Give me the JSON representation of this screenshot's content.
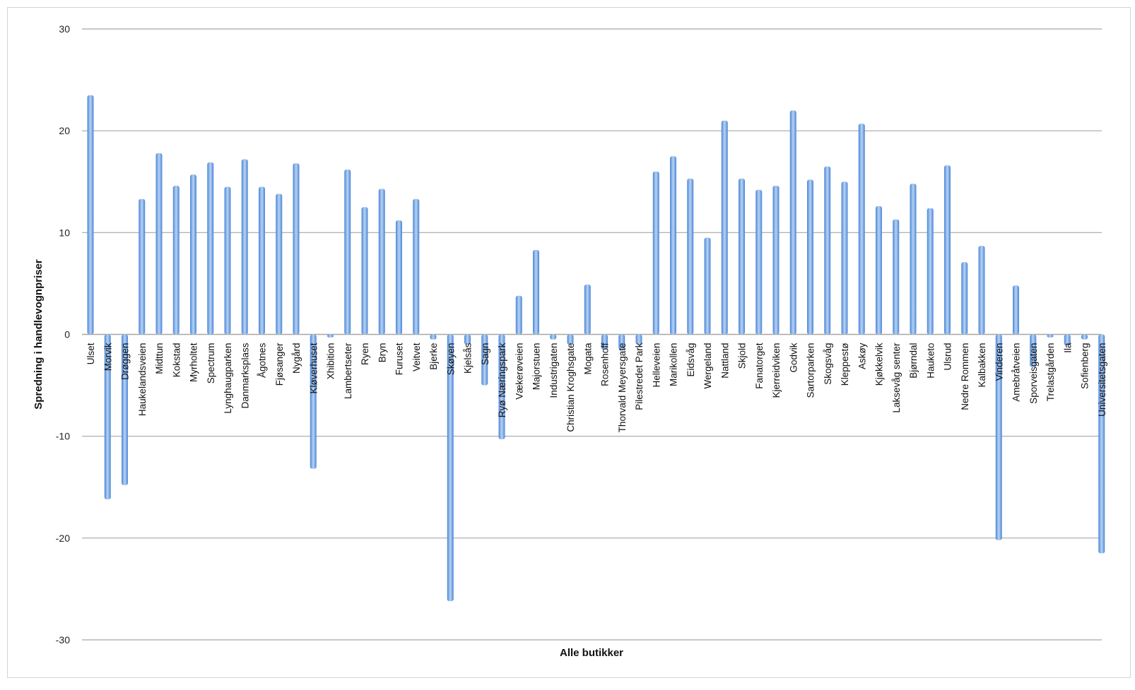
{
  "chart_data": {
    "type": "bar",
    "title": "",
    "xlabel": "Alle butikker",
    "ylabel": "Spredning i handlevognpriser",
    "ylim": [
      -30,
      30
    ],
    "yticks": [
      30,
      20,
      10,
      0,
      -10,
      -20,
      -30
    ],
    "grid": true,
    "legend": "none",
    "bar_color": "#4a86d8",
    "bar_color_light": "#b9d3f3",
    "gridline_color": "#a6a6a6",
    "categories": [
      "Ulset",
      "Morvik",
      "Drøggen",
      "Haukelandsveien",
      "Midttun",
      "Kokstad",
      "Myrholtet",
      "Spectrum",
      "Lynghaugparken",
      "Danmarksplass",
      "Ågotnes",
      "Fjøsanger",
      "Nygård",
      "Kløverhuset",
      "Xhibition",
      "Lambertseter",
      "Ryen",
      "Bryn",
      "Furuset",
      "Veitvet",
      "Bjerke",
      "Skøyen",
      "Kjelsås",
      "Sagn",
      "Ryø Næringspark",
      "Vækerøveien",
      "Majorstuen",
      "Industrigaten",
      "Christian Kroghsgate",
      "Mogata",
      "Rosenhoff",
      "Thorvald Meyersgate",
      "Pilestredet Park",
      "Helleveien",
      "Marikollen",
      "Eidsvåg",
      "Wergeland",
      "Nattland",
      "Skjold",
      "Fanatorget",
      "Kjerreidviken",
      "Godvik",
      "Sartorparken",
      "Skogsvåg",
      "Kleppestø",
      "Askøy",
      "Kjøkkelvik",
      "Laksevåg senter",
      "Bjørndal",
      "Hauketo",
      "Ulsrud",
      "Nedre Rommen",
      "Kalbakken",
      "Vinderen",
      "Amebråtveien",
      "Sporveisgaten",
      "Trelastgården",
      "Ila",
      "Sofienberg",
      "Universitetsgaten"
    ],
    "values": [
      23.5,
      -16.2,
      -14.8,
      13.3,
      17.8,
      14.6,
      15.7,
      16.9,
      14.5,
      17.2,
      14.5,
      13.8,
      16.8,
      -13.2,
      -0.3,
      16.2,
      12.5,
      14.3,
      11.2,
      13.3,
      -0.5,
      -26.2,
      -1.0,
      -5.0,
      -10.3,
      3.8,
      8.3,
      -0.5,
      -1.0,
      4.9,
      -1.5,
      -1.5,
      -1.0,
      16.0,
      17.5,
      15.3,
      9.5,
      21.0,
      15.3,
      14.2,
      14.6,
      22.0,
      15.2,
      16.5,
      15.0,
      20.7,
      12.6,
      11.3,
      14.8,
      12.4,
      16.6,
      7.1,
      8.7,
      -20.2,
      4.8,
      -3.2,
      -0.3,
      -1.1,
      -0.5,
      -21.5
    ]
  }
}
